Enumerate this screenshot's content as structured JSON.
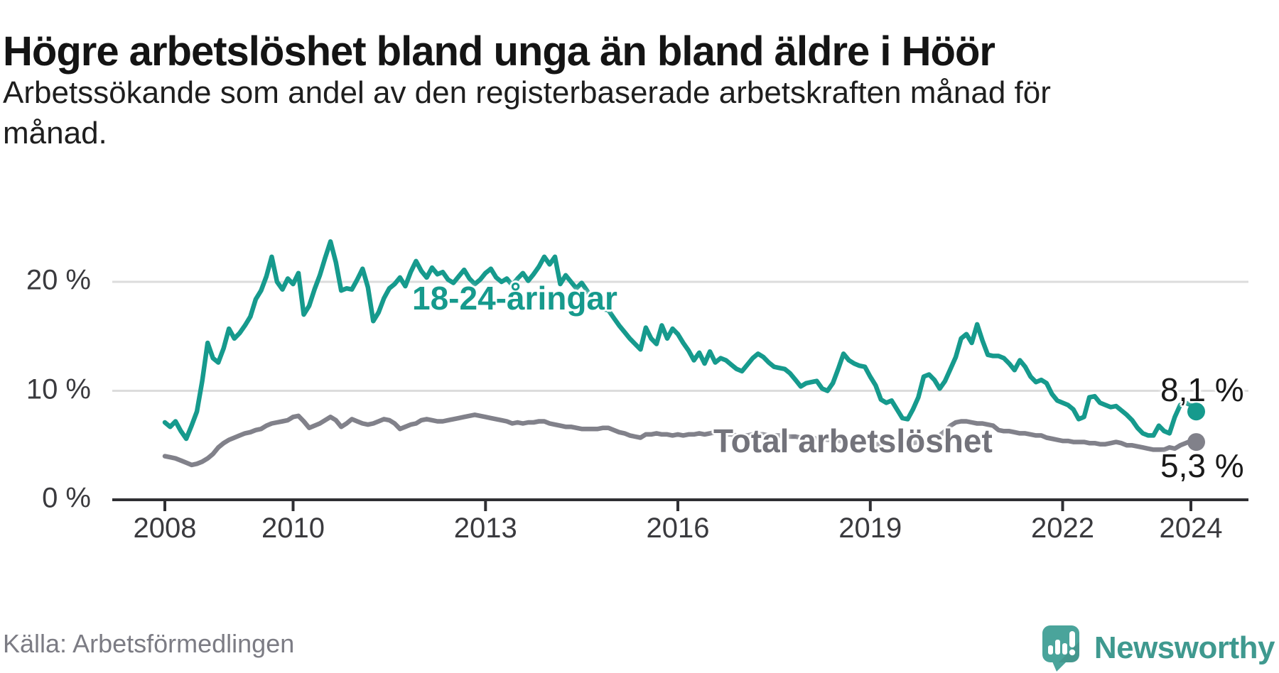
{
  "title": "Högre arbetslöshet bland unga än bland äldre i Höör",
  "subtitle_lines": [
    "Arbetssökande som andel av den registerbaserade arbetskraften månad för",
    "månad."
  ],
  "source": "Källa: Arbetsförmedlingen",
  "brand": {
    "name": "Newsworthy",
    "bubble_color": "#4aa49b",
    "text_color": "#3f998f"
  },
  "colors": {
    "young_line": "#169a8d",
    "total_line": "#81818a",
    "axis": "#2f2f33",
    "grid": "#dcdcdc",
    "tick_text": "#3a3a3e",
    "annotation_text": "#1a1a1a"
  },
  "annotations": {
    "young_label": "18-24-åringar",
    "total_label": "Total arbetslöshet",
    "young_end_value": "8,1 %",
    "total_end_value": "5,3 %"
  },
  "y_axis": {
    "labels": [
      {
        "text": "0 %",
        "value": 0
      },
      {
        "text": "10 %",
        "value": 10
      },
      {
        "text": "20 %",
        "value": 20
      }
    ]
  },
  "x_axis": {
    "ticks": [
      {
        "label": "2008",
        "year": 2008
      },
      {
        "label": "2010",
        "year": 2010
      },
      {
        "label": "2013",
        "year": 2013
      },
      {
        "label": "2016",
        "year": 2016
      },
      {
        "label": "2019",
        "year": 2019
      },
      {
        "label": "2022",
        "year": 2022
      },
      {
        "label": "2024",
        "year": 2024
      }
    ]
  },
  "chart_data": {
    "type": "line",
    "title": "Högre arbetslöshet bland unga än bland äldre i Höör",
    "xlabel": "",
    "ylabel": "Arbetssökande som andel av den registerbaserade arbetskraften",
    "x_start": "2008-01",
    "x_end": "2024-02",
    "frequency": "monthly",
    "ylim": [
      0,
      24
    ],
    "grid": "horizontal, at 10 and 20",
    "legend_position": "labels on lines",
    "series": [
      {
        "name": "18-24-åringar",
        "color": "#169a8d",
        "end_label": "8,1 %",
        "values": [
          7.1,
          6.7,
          7.2,
          6.3,
          5.6,
          6.8,
          8.1,
          10.9,
          14.4,
          13.0,
          12.6,
          13.9,
          15.7,
          14.8,
          15.3,
          16.0,
          16.8,
          18.4,
          19.2,
          20.5,
          22.3,
          20.0,
          19.3,
          20.3,
          19.8,
          20.8,
          17.0,
          17.8,
          19.3,
          20.6,
          22.2,
          23.7,
          21.8,
          19.2,
          19.4,
          19.3,
          20.2,
          21.2,
          19.5,
          16.4,
          17.2,
          18.5,
          19.4,
          19.8,
          20.4,
          19.6,
          20.9,
          21.9,
          21.0,
          20.4,
          21.3,
          20.7,
          20.9,
          20.2,
          19.9,
          20.5,
          21.1,
          20.3,
          19.8,
          20.2,
          20.8,
          21.2,
          20.4,
          20.0,
          20.3,
          19.7,
          20.3,
          20.8,
          20.1,
          20.7,
          21.4,
          22.3,
          21.6,
          22.3,
          19.8,
          20.6,
          20.0,
          19.4,
          19.9,
          19.2,
          18.4,
          17.8,
          17.5,
          17.4,
          16.7,
          16.0,
          15.4,
          14.8,
          14.3,
          13.8,
          15.8,
          14.8,
          14.3,
          16.0,
          14.8,
          15.7,
          15.2,
          14.4,
          13.7,
          12.8,
          13.5,
          12.5,
          13.6,
          12.6,
          13.0,
          12.8,
          12.4,
          12.0,
          11.8,
          12.4,
          13.0,
          13.4,
          13.1,
          12.6,
          12.2,
          12.1,
          12.0,
          11.6,
          11.0,
          10.4,
          10.7,
          10.8,
          10.9,
          10.2,
          10.0,
          10.7,
          12.0,
          13.4,
          12.8,
          12.5,
          12.3,
          12.2,
          11.3,
          10.5,
          9.2,
          8.9,
          9.1,
          8.3,
          7.5,
          7.4,
          8.3,
          9.4,
          11.3,
          11.5,
          11.0,
          10.2,
          10.9,
          12.0,
          13.1,
          14.8,
          15.2,
          14.4,
          16.1,
          14.6,
          13.3,
          13.2,
          13.2,
          13.0,
          12.5,
          11.9,
          12.8,
          12.2,
          11.3,
          10.8,
          11.0,
          10.7,
          9.7,
          9.1,
          8.9,
          8.7,
          8.3,
          7.4,
          7.6,
          9.4,
          9.5,
          8.9,
          8.7,
          8.5,
          8.6,
          8.2,
          7.8,
          7.3,
          6.6,
          6.1,
          5.9,
          5.9,
          6.8,
          6.3,
          6.1,
          7.6,
          8.7,
          8.9,
          8.7,
          8.1
        ]
      },
      {
        "name": "Total arbetslöshet",
        "color": "#81818a",
        "end_label": "5,3 %",
        "values": [
          4.0,
          3.9,
          3.8,
          3.6,
          3.4,
          3.2,
          3.3,
          3.5,
          3.8,
          4.2,
          4.8,
          5.2,
          5.5,
          5.7,
          5.9,
          6.1,
          6.2,
          6.4,
          6.5,
          6.8,
          7.0,
          7.1,
          7.2,
          7.3,
          7.6,
          7.7,
          7.2,
          6.6,
          6.8,
          7.0,
          7.3,
          7.6,
          7.3,
          6.7,
          7.0,
          7.4,
          7.2,
          7.0,
          6.9,
          7.0,
          7.2,
          7.4,
          7.3,
          7.0,
          6.5,
          6.7,
          6.9,
          7.0,
          7.3,
          7.4,
          7.3,
          7.2,
          7.2,
          7.3,
          7.4,
          7.5,
          7.6,
          7.7,
          7.8,
          7.7,
          7.6,
          7.5,
          7.4,
          7.3,
          7.2,
          7.0,
          7.1,
          7.0,
          7.1,
          7.1,
          7.2,
          7.2,
          7.0,
          6.9,
          6.8,
          6.7,
          6.7,
          6.6,
          6.5,
          6.5,
          6.5,
          6.5,
          6.6,
          6.6,
          6.4,
          6.2,
          6.1,
          5.9,
          5.8,
          5.7,
          6.0,
          6.0,
          6.1,
          6.0,
          6.0,
          5.9,
          6.0,
          5.9,
          6.0,
          6.0,
          6.1,
          6.0,
          6.1,
          6.2,
          6.1,
          6.0,
          6.0,
          5.9,
          5.9,
          5.9,
          6.0,
          6.0,
          6.0,
          5.9,
          5.9,
          5.9,
          5.8,
          5.8,
          5.8,
          5.7,
          5.7,
          5.7,
          5.6,
          5.6,
          5.5,
          5.5,
          5.4,
          5.4,
          5.4,
          5.3,
          5.3,
          5.3,
          5.2,
          5.1,
          5.1,
          5.0,
          5.0,
          4.9,
          5.0,
          5.1,
          5.2,
          5.3,
          5.4,
          5.5,
          5.8,
          5.9,
          6.3,
          6.8,
          7.1,
          7.2,
          7.2,
          7.1,
          7.0,
          7.0,
          6.9,
          6.8,
          6.4,
          6.3,
          6.3,
          6.2,
          6.1,
          6.1,
          6.0,
          5.9,
          5.9,
          5.7,
          5.6,
          5.5,
          5.4,
          5.4,
          5.3,
          5.3,
          5.3,
          5.2,
          5.2,
          5.1,
          5.1,
          5.2,
          5.3,
          5.2,
          5.0,
          5.0,
          4.9,
          4.8,
          4.7,
          4.6,
          4.6,
          4.6,
          4.8,
          4.7,
          5.0,
          5.2,
          5.4,
          5.3
        ]
      }
    ]
  }
}
